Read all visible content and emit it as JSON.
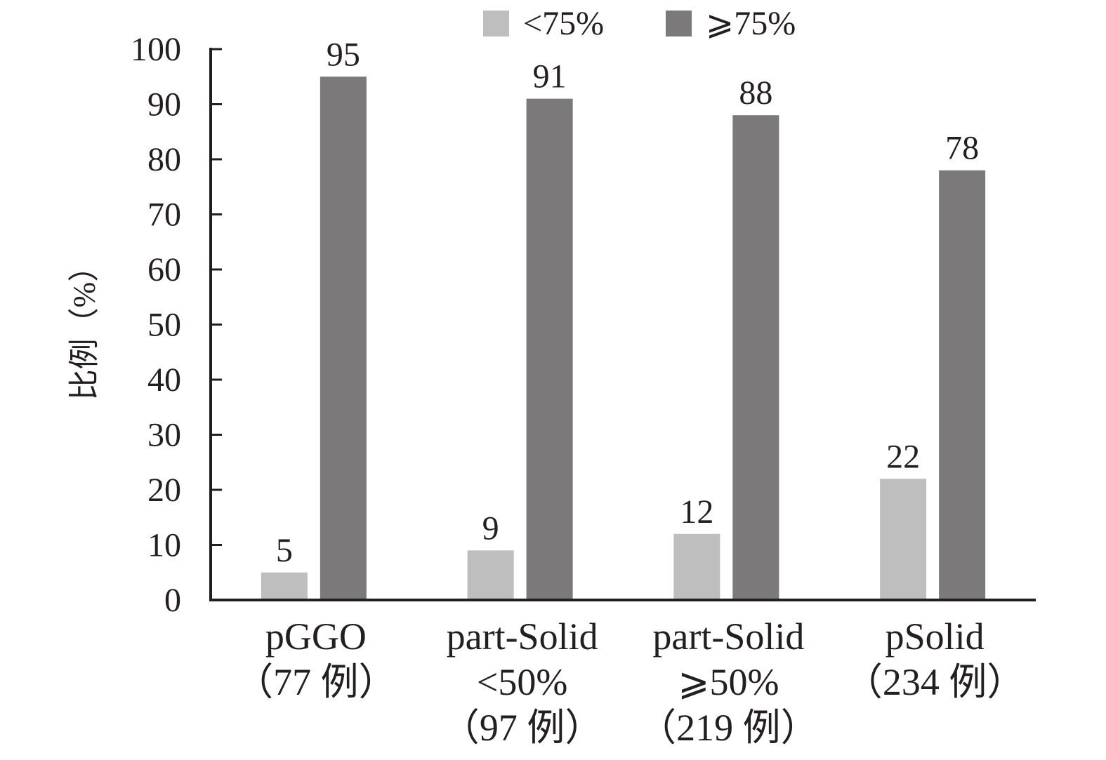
{
  "chart_data": {
    "type": "bar",
    "ylabel": "比例（%）",
    "categories": [
      [
        "pGGO",
        "（77 例）"
      ],
      [
        "part-Solid",
        "<50%",
        "（97 例）"
      ],
      [
        "part-Solid",
        "⩾50%",
        "（219 例）"
      ],
      [
        "pSolid",
        "（234 例）"
      ]
    ],
    "series": [
      {
        "name": "<75%",
        "color": "#bebebe",
        "values": [
          5,
          9,
          12,
          22
        ]
      },
      {
        "name": "⩾75%",
        "color": "#7b7979",
        "values": [
          95,
          91,
          88,
          78
        ]
      }
    ],
    "ylim": [
      0,
      100
    ],
    "yticks": [
      0,
      10,
      20,
      30,
      40,
      50,
      60,
      70,
      80,
      90,
      100
    ],
    "data_labels": true,
    "grid": false,
    "legend": {
      "position": "top"
    }
  },
  "colors": {
    "axis": "#231f20",
    "text": "#231f20",
    "background": "#ffffff"
  }
}
